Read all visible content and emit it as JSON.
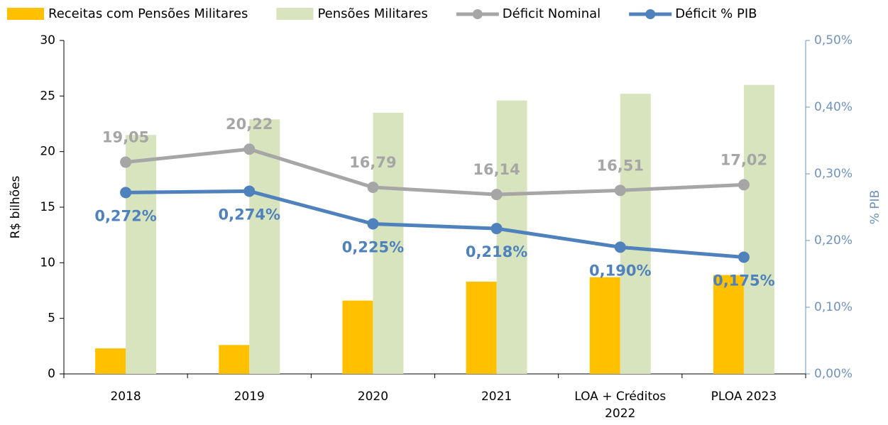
{
  "chart_data": {
    "type": "bar_line",
    "ylabel": "R$ bilhões",
    "y2label": "% PIB",
    "categories": [
      "2018",
      "2019",
      "2020",
      "2021",
      "LOA + Créditos 2022",
      "PLOA 2023"
    ],
    "series": [
      {
        "name": "Receitas com Pensões Militares",
        "type": "bar",
        "color": "#ffc000",
        "values": [
          2.3,
          2.6,
          6.6,
          8.3,
          8.7,
          8.9
        ]
      },
      {
        "name": "Pensões Militares",
        "type": "bar",
        "color": "#d7e4bd",
        "values": [
          21.5,
          22.9,
          23.5,
          24.6,
          25.2,
          26.0
        ]
      },
      {
        "name": "Déficit Nominal",
        "type": "line",
        "color": "#a6a6a6",
        "values": [
          19.05,
          20.22,
          16.79,
          16.14,
          16.51,
          17.02
        ],
        "value_labels": [
          "19,05",
          "20,22",
          "16,79",
          "16,14",
          "16,51",
          "17,02"
        ]
      },
      {
        "name": "Déficit % PIB",
        "type": "line",
        "axis": "y2",
        "color": "#4f81bd",
        "values": [
          0.272,
          0.274,
          0.225,
          0.218,
          0.19,
          0.175
        ],
        "value_labels": [
          "0,272%",
          "0,274%",
          "0,225%",
          "0,218%",
          "0,190%",
          "0,175%"
        ]
      }
    ],
    "ylim": [
      0,
      30
    ],
    "yticks": [
      0,
      5,
      10,
      15,
      20,
      25,
      30
    ],
    "y2lim": [
      0,
      0.5
    ],
    "y2ticks": [
      {
        "value": 0,
        "label": "0,00%"
      },
      {
        "value": 0.1,
        "label": "0,10%"
      },
      {
        "value": 0.2,
        "label": "0,20%"
      },
      {
        "value": 0.3,
        "label": "0,30%"
      },
      {
        "value": 0.4,
        "label": "0,40%"
      },
      {
        "value": 0.5,
        "label": "0,50%"
      }
    ],
    "legend": "top"
  }
}
